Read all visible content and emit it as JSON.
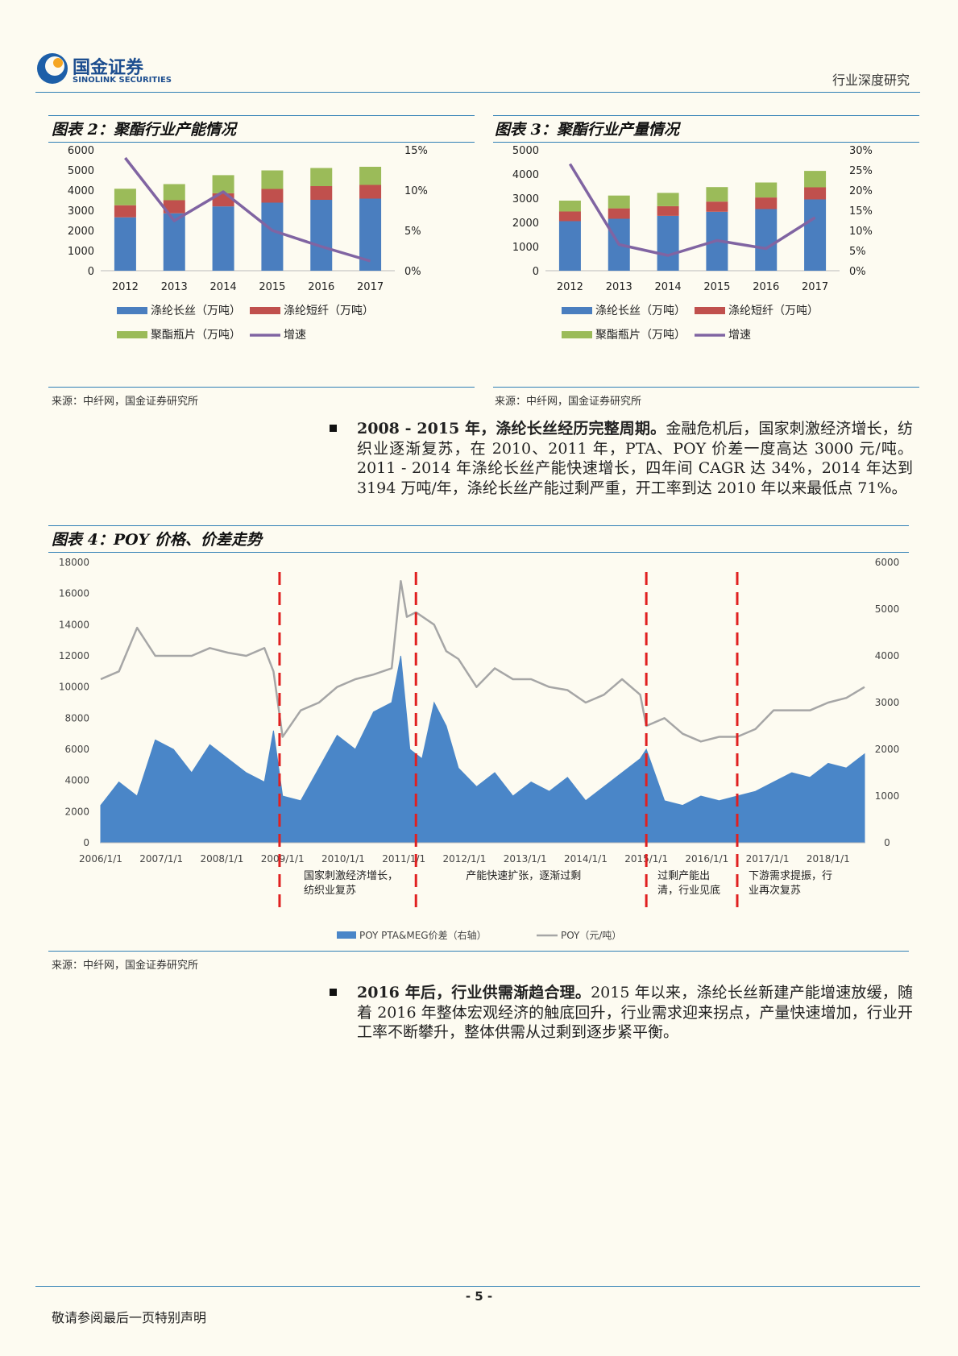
{
  "header": {
    "logo_cn": "国金证券",
    "logo_en": "SINOLINK SECURITIES",
    "report_type": "行业深度研究"
  },
  "fig2": {
    "title": "图表 2：聚酯行业产能情况",
    "source": "来源：中纤网，国金证券研究所",
    "chart_data": {
      "type": "bar",
      "stacked": true,
      "categories": [
        "2012",
        "2013",
        "2014",
        "2015",
        "2016",
        "2017"
      ],
      "series": [
        {
          "name": "涤纶长丝（万吨）",
          "color": "#4a7ebf",
          "values": [
            2650,
            2850,
            3194,
            3380,
            3520,
            3580
          ]
        },
        {
          "name": "涤纶短纤（万吨）",
          "color": "#c0504d",
          "values": [
            600,
            650,
            650,
            680,
            680,
            680
          ]
        },
        {
          "name": "聚酯瓶片（万吨）",
          "color": "#9bbb59",
          "values": [
            820,
            800,
            900,
            920,
            900,
            900
          ]
        }
      ],
      "line": {
        "name": "增速",
        "color": "#8064a2",
        "values": [
          14.0,
          6.2,
          9.8,
          5.0,
          3.0,
          1.2
        ]
      },
      "y_ticks": [
        "0",
        "1000",
        "2000",
        "3000",
        "4000",
        "5000",
        "6000"
      ],
      "y2_ticks": [
        "0%",
        "5%",
        "10%",
        "15%"
      ],
      "ylim": [
        0,
        6000
      ],
      "y2lim": [
        0,
        15
      ]
    }
  },
  "fig3": {
    "title": "图表 3：聚酯行业产量情况",
    "source": "来源：中纤网，国金证券研究所",
    "chart_data": {
      "type": "bar",
      "stacked": true,
      "categories": [
        "2012",
        "2013",
        "2014",
        "2015",
        "2016",
        "2017"
      ],
      "series": [
        {
          "name": "涤纶长丝（万吨）",
          "color": "#4a7ebf",
          "values": [
            2050,
            2150,
            2270,
            2440,
            2550,
            2950
          ]
        },
        {
          "name": "涤纶短纤（万吨）",
          "color": "#c0504d",
          "values": [
            400,
            430,
            400,
            420,
            480,
            500
          ]
        },
        {
          "name": "聚酯瓶片（万吨）",
          "color": "#9bbb59",
          "values": [
            450,
            530,
            550,
            600,
            620,
            680
          ]
        }
      ],
      "line": {
        "name": "增速",
        "color": "#8064a2",
        "values": [
          26.5,
          6.5,
          3.8,
          7.5,
          5.5,
          13.2
        ]
      },
      "y_ticks": [
        "0",
        "1000",
        "2000",
        "3000",
        "4000",
        "5000"
      ],
      "y2_ticks": [
        "0%",
        "5%",
        "10%",
        "15%",
        "20%",
        "25%",
        "30%"
      ],
      "ylim": [
        0,
        5000
      ],
      "y2lim": [
        0,
        30
      ]
    }
  },
  "para1": {
    "lead": "2008 - 2015 年，涤纶长丝经历完整周期。",
    "text": "金融危机后，国家刺激经济增长，纺织业逐渐复苏，在 2010、2011 年，PTA、POY 价差一度高达 3000 元/吨。2011 - 2014 年涤纶长丝产能快速增长，四年间 CAGR 达 34%，2014 年达到 3194 万吨/年，涤纶长丝产能过剩严重，开工率到达 2010 年以来最低点 71%。"
  },
  "fig4": {
    "title": "图表 4：POY 价格、价差走势",
    "source": "来源：中纤网，国金证券研究所",
    "chart_data": {
      "type": "area",
      "x_ticks": [
        "2006/1/1",
        "2007/1/1",
        "2008/1/1",
        "2009/1/1",
        "2010/1/1",
        "2011/1/1",
        "2012/1/1",
        "2013/1/1",
        "2014/1/1",
        "2015/1/1",
        "2016/1/1",
        "2017/1/1",
        "2018/1/1"
      ],
      "y_ticks": [
        "0",
        "2000",
        "4000",
        "6000",
        "8000",
        "10000",
        "12000",
        "14000",
        "16000",
        "18000"
      ],
      "y2_ticks": [
        "0",
        "1000",
        "2000",
        "3000",
        "4000",
        "5000",
        "6000"
      ],
      "ylim": [
        0,
        18000
      ],
      "y2lim": [
        0,
        6000
      ],
      "series": [
        {
          "name": "POY PTA&MEG价差（右轴）",
          "axis": "right",
          "color": "#4a86c8",
          "x": [
            2006.0,
            2006.3,
            2006.6,
            2006.9,
            2007.2,
            2007.5,
            2007.8,
            2008.1,
            2008.4,
            2008.7,
            2008.85,
            2009.0,
            2009.3,
            2009.6,
            2009.9,
            2010.2,
            2010.5,
            2010.8,
            2010.95,
            2011.1,
            2011.3,
            2011.5,
            2011.7,
            2011.9,
            2012.2,
            2012.5,
            2012.8,
            2013.1,
            2013.4,
            2013.7,
            2014.0,
            2014.3,
            2014.6,
            2014.9,
            2015.0,
            2015.3,
            2015.6,
            2015.9,
            2016.2,
            2016.5,
            2016.8,
            2017.1,
            2017.4,
            2017.7,
            2018.0,
            2018.3,
            2018.6
          ],
          "y": [
            800,
            1300,
            1000,
            2200,
            2000,
            1500,
            2100,
            1800,
            1500,
            1300,
            2400,
            1000,
            900,
            1600,
            2300,
            2000,
            2800,
            3000,
            4000,
            2000,
            1800,
            3000,
            2500,
            1600,
            1200,
            1500,
            1000,
            1300,
            1100,
            1400,
            900,
            1200,
            1500,
            1800,
            2000,
            900,
            800,
            1000,
            900,
            1000,
            1100,
            1300,
            1500,
            1400,
            1700,
            1600,
            1900
          ]
        },
        {
          "name": "POY（元/吨）",
          "axis": "left",
          "color": "#a6a6a6",
          "x": [
            2006.0,
            2006.3,
            2006.6,
            2006.9,
            2007.2,
            2007.5,
            2007.8,
            2008.1,
            2008.4,
            2008.7,
            2008.85,
            2009.0,
            2009.3,
            2009.6,
            2009.9,
            2010.2,
            2010.5,
            2010.8,
            2010.95,
            2011.05,
            2011.2,
            2011.5,
            2011.7,
            2011.9,
            2012.2,
            2012.5,
            2012.8,
            2013.1,
            2013.4,
            2013.7,
            2014.0,
            2014.3,
            2014.6,
            2014.9,
            2015.0,
            2015.3,
            2015.6,
            2015.9,
            2016.2,
            2016.5,
            2016.8,
            2017.1,
            2017.4,
            2017.7,
            2018.0,
            2018.3,
            2018.6
          ],
          "y": [
            10500,
            11000,
            13800,
            12000,
            12000,
            12000,
            12500,
            12200,
            12000,
            12500,
            11000,
            6800,
            8500,
            9000,
            10000,
            10500,
            10800,
            11200,
            16800,
            14500,
            14800,
            14000,
            12300,
            11800,
            10000,
            11200,
            10500,
            10500,
            10000,
            9800,
            9000,
            9500,
            10500,
            9500,
            7500,
            8000,
            7000,
            6500,
            6800,
            6800,
            7300,
            8500,
            8500,
            8500,
            9000,
            9300,
            10000
          ]
        }
      ],
      "annotations": [
        {
          "x": 2008.95,
          "text1": "国家刺激经济增长，",
          "text2": "纺织业复苏"
        },
        {
          "x": 2011.2,
          "text1": "产能快速扩张，逐渐过剩",
          "text2": ""
        },
        {
          "x": 2015.0,
          "text1": "过剩产能出",
          "text2": "清，行业见底"
        },
        {
          "x": 2016.5,
          "text1": "下游需求提振，行",
          "text2": "业再次复苏"
        }
      ]
    }
  },
  "para2": {
    "lead": "2016 年后，行业供需渐趋合理。",
    "text": "2015 年以来，涤纶长丝新建产能增速放缓，随着 2016 年整体宏观经济的触底回升，行业需求迎来拐点，产量快速增加，行业开工率不断攀升，整体供需从过剩到逐步紧平衡。"
  },
  "footer": {
    "page_number": "- 5 -",
    "notice": "敬请参阅最后一页特别声明"
  }
}
